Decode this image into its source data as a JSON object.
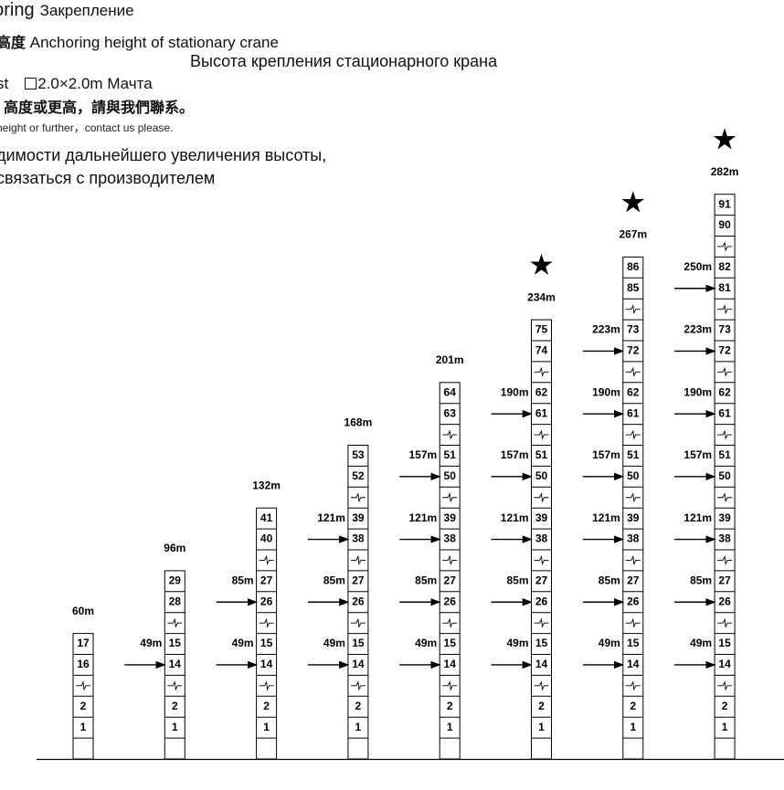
{
  "legend": {
    "title_en": "horing",
    "title_ru": "Закрепление",
    "height_label_cn": "高度",
    "height_label_en": "Anchoring height of stationary crane",
    "height_label_ru": "Высота крепления стационарного крана",
    "mast_prefix": "st",
    "mast_size": "2.0×2.0m",
    "mast_ru": "Мачта",
    "contact_cn": "高度或更高，請與我們聯系。",
    "contact_en": "height or further，contact us please.",
    "contact_ru_line1": "димости дальнейшего увеличения высоты,",
    "contact_ru_line2": "связаться с производителем"
  },
  "icons": {
    "star": "star-icon",
    "arrow": "anchor-arrow-icon",
    "break": "break-symbol-icon"
  },
  "anchor_unit": "m",
  "chart_data": {
    "type": "diagram",
    "title": "",
    "columns": [
      {
        "height": "60m",
        "star": false,
        "top_sections": [
          17,
          16
        ],
        "anchors": []
      },
      {
        "height": "96m",
        "star": false,
        "top_sections": [
          29,
          28
        ],
        "anchors": [
          {
            "label": "49m",
            "sections": [
              15,
              14
            ]
          }
        ]
      },
      {
        "height": "132m",
        "star": false,
        "top_sections": [
          41,
          40
        ],
        "anchors": [
          {
            "label": "85m",
            "sections": [
              27,
              26
            ]
          },
          {
            "label": "49m",
            "sections": [
              15,
              14
            ]
          }
        ]
      },
      {
        "height": "168m",
        "star": false,
        "top_sections": [
          53,
          52
        ],
        "anchors": [
          {
            "label": "121m",
            "sections": [
              39,
              38
            ]
          },
          {
            "label": "85m",
            "sections": [
              27,
              26
            ]
          },
          {
            "label": "49m",
            "sections": [
              15,
              14
            ]
          }
        ]
      },
      {
        "height": "201m",
        "star": false,
        "top_sections": [
          64,
          63
        ],
        "anchors": [
          {
            "label": "157m",
            "sections": [
              51,
              50
            ]
          },
          {
            "label": "121m",
            "sections": [
              39,
              38
            ]
          },
          {
            "label": "85m",
            "sections": [
              27,
              26
            ]
          },
          {
            "label": "49m",
            "sections": [
              15,
              14
            ]
          }
        ]
      },
      {
        "height": "234m",
        "star": true,
        "top_sections": [
          75,
          74
        ],
        "anchors": [
          {
            "label": "190m",
            "sections": [
              62,
              61
            ]
          },
          {
            "label": "157m",
            "sections": [
              51,
              50
            ]
          },
          {
            "label": "121m",
            "sections": [
              39,
              38
            ]
          },
          {
            "label": "85m",
            "sections": [
              27,
              26
            ]
          },
          {
            "label": "49m",
            "sections": [
              15,
              14
            ]
          }
        ]
      },
      {
        "height": "267m",
        "star": true,
        "top_sections": [
          86,
          85
        ],
        "anchors": [
          {
            "label": "223m",
            "sections": [
              73,
              72
            ]
          },
          {
            "label": "190m",
            "sections": [
              62,
              61
            ]
          },
          {
            "label": "157m",
            "sections": [
              51,
              50
            ]
          },
          {
            "label": "121m",
            "sections": [
              39,
              38
            ]
          },
          {
            "label": "85m",
            "sections": [
              27,
              26
            ]
          },
          {
            "label": "49m",
            "sections": [
              15,
              14
            ]
          }
        ]
      },
      {
        "height": "282m",
        "star": true,
        "top_sections": [
          91,
          90
        ],
        "anchors": [
          {
            "label": "250m",
            "sections": [
              82,
              81
            ]
          },
          {
            "label": "223m",
            "sections": [
              73,
              72
            ]
          },
          {
            "label": "190m",
            "sections": [
              62,
              61
            ]
          },
          {
            "label": "157m",
            "sections": [
              51,
              50
            ]
          },
          {
            "label": "121m",
            "sections": [
              39,
              38
            ]
          },
          {
            "label": "85m",
            "sections": [
              27,
              26
            ]
          },
          {
            "label": "49m",
            "sections": [
              15,
              14
            ]
          }
        ]
      }
    ],
    "base_sections": [
      2,
      1
    ]
  }
}
